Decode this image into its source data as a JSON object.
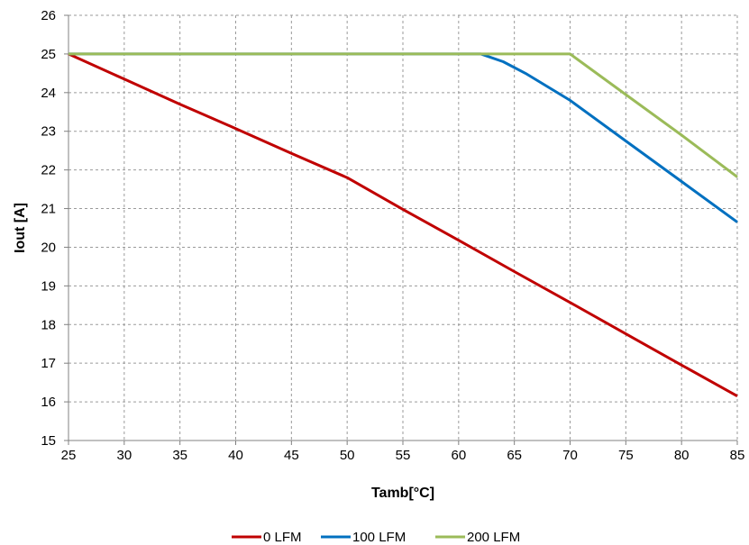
{
  "chart_data": {
    "type": "line",
    "title": "",
    "xlabel": "Tamb[°C]",
    "ylabel": "Iout [A]",
    "xlim": [
      25,
      85
    ],
    "ylim": [
      15,
      26
    ],
    "x_ticks": [
      25,
      30,
      35,
      40,
      45,
      50,
      55,
      60,
      65,
      70,
      75,
      80,
      85
    ],
    "y_ticks": [
      15,
      16,
      17,
      18,
      19,
      20,
      21,
      22,
      23,
      24,
      25,
      26
    ],
    "grid": true,
    "legend_position": "bottom",
    "series": [
      {
        "name": "0 LFM",
        "color": "#C00000",
        "points": [
          [
            25,
            25.0
          ],
          [
            30,
            24.35
          ],
          [
            35,
            23.7
          ],
          [
            40,
            23.07
          ],
          [
            45,
            22.43
          ],
          [
            50,
            21.8
          ],
          [
            55,
            20.98
          ],
          [
            60,
            20.18
          ],
          [
            65,
            19.37
          ],
          [
            70,
            18.57
          ],
          [
            75,
            17.76
          ],
          [
            80,
            16.95
          ],
          [
            85,
            16.15
          ]
        ]
      },
      {
        "name": "100 LFM",
        "color": "#0070C0",
        "points": [
          [
            25,
            25.0
          ],
          [
            62,
            25.0
          ],
          [
            64,
            24.8
          ],
          [
            66,
            24.5
          ],
          [
            70,
            23.8
          ],
          [
            75,
            22.75
          ],
          [
            80,
            21.7
          ],
          [
            85,
            20.65
          ]
        ]
      },
      {
        "name": "200 LFM",
        "color": "#9BBB59",
        "points": [
          [
            25,
            25.0
          ],
          [
            70,
            25.0
          ],
          [
            75,
            23.95
          ],
          [
            80,
            22.9
          ],
          [
            85,
            21.82
          ]
        ]
      }
    ]
  }
}
